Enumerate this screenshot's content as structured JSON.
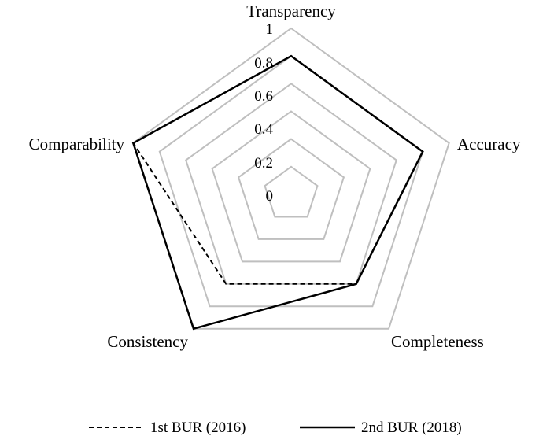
{
  "chart_data": {
    "type": "radar",
    "axes": [
      "Transparency",
      "Accuracy",
      "Completeness",
      "Consistency",
      "Comparability"
    ],
    "ticks": [
      "0",
      "0.2",
      "0.4",
      "0.6",
      "0.8",
      "1"
    ],
    "range": [
      0,
      1
    ],
    "grid": true,
    "legend_position": "bottom",
    "series": [
      {
        "name": "1st BUR (2016)",
        "values": [
          0.8,
          0.8,
          0.6,
          0.6,
          1.0
        ],
        "style": "dashed",
        "color": "#000000"
      },
      {
        "name": "2nd BUR (2018)",
        "values": [
          0.8,
          0.8,
          0.6,
          1.0,
          1.0
        ],
        "style": "solid",
        "color": "#000000"
      }
    ],
    "grid_color": "#bfbfbf"
  }
}
